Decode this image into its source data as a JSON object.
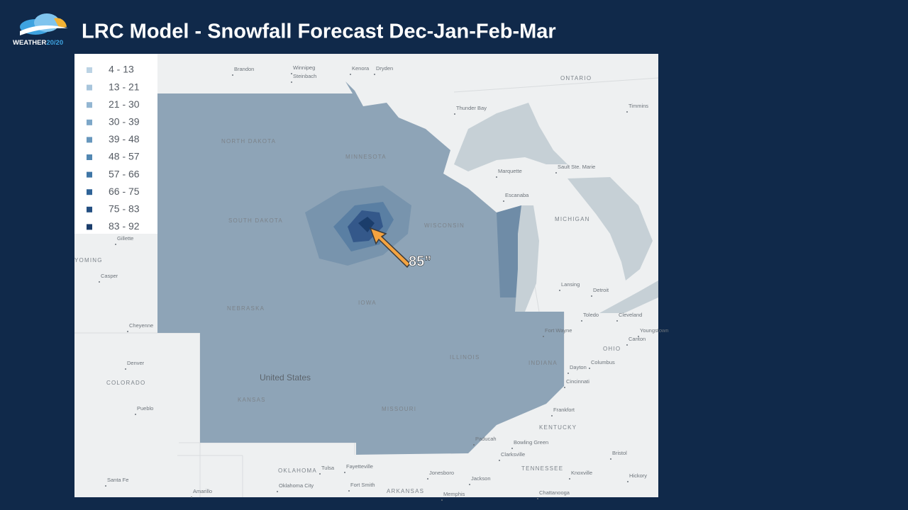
{
  "header": {
    "title": "LRC Model - Snowfall Forecast Dec-Jan-Feb-Mar",
    "logo": {
      "text": "WEATHER",
      "accent": "20/20"
    }
  },
  "legend": {
    "items": [
      {
        "label": "4 - 13",
        "color": "#bcd3e4"
      },
      {
        "label": "13 - 21",
        "color": "#a8c5dc"
      },
      {
        "label": "21 - 30",
        "color": "#93b6d2"
      },
      {
        "label": "30 - 39",
        "color": "#7da7c8"
      },
      {
        "label": "39 - 48",
        "color": "#6797bd"
      },
      {
        "label": "48 - 57",
        "color": "#5287b2"
      },
      {
        "label": "57 - 66",
        "color": "#3f76a6"
      },
      {
        "label": "66 - 75",
        "color": "#2f6397"
      },
      {
        "label": "75 - 83",
        "color": "#244f82"
      },
      {
        "label": "83 - 92",
        "color": "#1b3d6b"
      }
    ]
  },
  "annotation": {
    "label": "85”"
  },
  "map_labels": [
    {
      "text": "United States",
      "kind": "country"
    },
    {
      "text": "NORTH DAKOTA",
      "kind": "state"
    },
    {
      "text": "SOUTH DAKOTA",
      "kind": "state"
    },
    {
      "text": "NEBRASKA",
      "kind": "state"
    },
    {
      "text": "KANSAS",
      "kind": "state"
    },
    {
      "text": "IOWA",
      "kind": "state"
    },
    {
      "text": "MINNESOTA",
      "kind": "state"
    },
    {
      "text": "WISCONSIN",
      "kind": "state"
    },
    {
      "text": "MICHIGAN",
      "kind": "state"
    },
    {
      "text": "ILLINOIS",
      "kind": "state"
    },
    {
      "text": "INDIANA",
      "kind": "state"
    },
    {
      "text": "OHIO",
      "kind": "state"
    },
    {
      "text": "MISSOURI",
      "kind": "state"
    },
    {
      "text": "COLORADO",
      "kind": "state"
    },
    {
      "text": "OKLAHOMA",
      "kind": "state"
    },
    {
      "text": "KENTUCKY",
      "kind": "state"
    },
    {
      "text": "TENNESSEE",
      "kind": "state"
    },
    {
      "text": "ARKANSAS",
      "kind": "state"
    },
    {
      "text": "YOMING",
      "kind": "state"
    },
    {
      "text": "ONTARIO",
      "kind": "state"
    },
    {
      "text": "Brandon",
      "kind": "city"
    },
    {
      "text": "Winnipeg",
      "kind": "city"
    },
    {
      "text": "Steinbach",
      "kind": "city"
    },
    {
      "text": "Kenora",
      "kind": "city"
    },
    {
      "text": "Dryden",
      "kind": "city"
    },
    {
      "text": "Thunder Bay",
      "kind": "city"
    },
    {
      "text": "Timmins",
      "kind": "city"
    },
    {
      "text": "Marquette",
      "kind": "city"
    },
    {
      "text": "Sault Ste. Marie",
      "kind": "city"
    },
    {
      "text": "Escanaba",
      "kind": "city"
    },
    {
      "text": "Lansing",
      "kind": "city"
    },
    {
      "text": "Detroit",
      "kind": "city"
    },
    {
      "text": "Toledo",
      "kind": "city"
    },
    {
      "text": "Cleveland",
      "kind": "city"
    },
    {
      "text": "Fort Wayne",
      "kind": "city"
    },
    {
      "text": "Columbus",
      "kind": "city"
    },
    {
      "text": "Dayton",
      "kind": "city"
    },
    {
      "text": "Cincinnati",
      "kind": "city"
    },
    {
      "text": "Frankfort",
      "kind": "city"
    },
    {
      "text": "Youngstown",
      "kind": "city"
    },
    {
      "text": "Canton",
      "kind": "city"
    },
    {
      "text": "Casper",
      "kind": "city"
    },
    {
      "text": "Gillette",
      "kind": "city"
    },
    {
      "text": "Cheyenne",
      "kind": "city"
    },
    {
      "text": "Denver",
      "kind": "city"
    },
    {
      "text": "Pueblo",
      "kind": "city"
    },
    {
      "text": "Santa Fe",
      "kind": "city"
    },
    {
      "text": "Amarillo",
      "kind": "city"
    },
    {
      "text": "Oklahoma City",
      "kind": "city"
    },
    {
      "text": "Tulsa",
      "kind": "city"
    },
    {
      "text": "Fayetteville",
      "kind": "city"
    },
    {
      "text": "Fort Smith",
      "kind": "city"
    },
    {
      "text": "Jonesboro",
      "kind": "city"
    },
    {
      "text": "Memphis",
      "kind": "city"
    },
    {
      "text": "Jackson",
      "kind": "city"
    },
    {
      "text": "Paducah",
      "kind": "city"
    },
    {
      "text": "Clarksville",
      "kind": "city"
    },
    {
      "text": "Bowling Green",
      "kind": "city"
    },
    {
      "text": "Knoxville",
      "kind": "city"
    },
    {
      "text": "Bristol",
      "kind": "city"
    },
    {
      "text": "Hickory",
      "kind": "city"
    },
    {
      "text": "Chattanooga",
      "kind": "city"
    }
  ]
}
